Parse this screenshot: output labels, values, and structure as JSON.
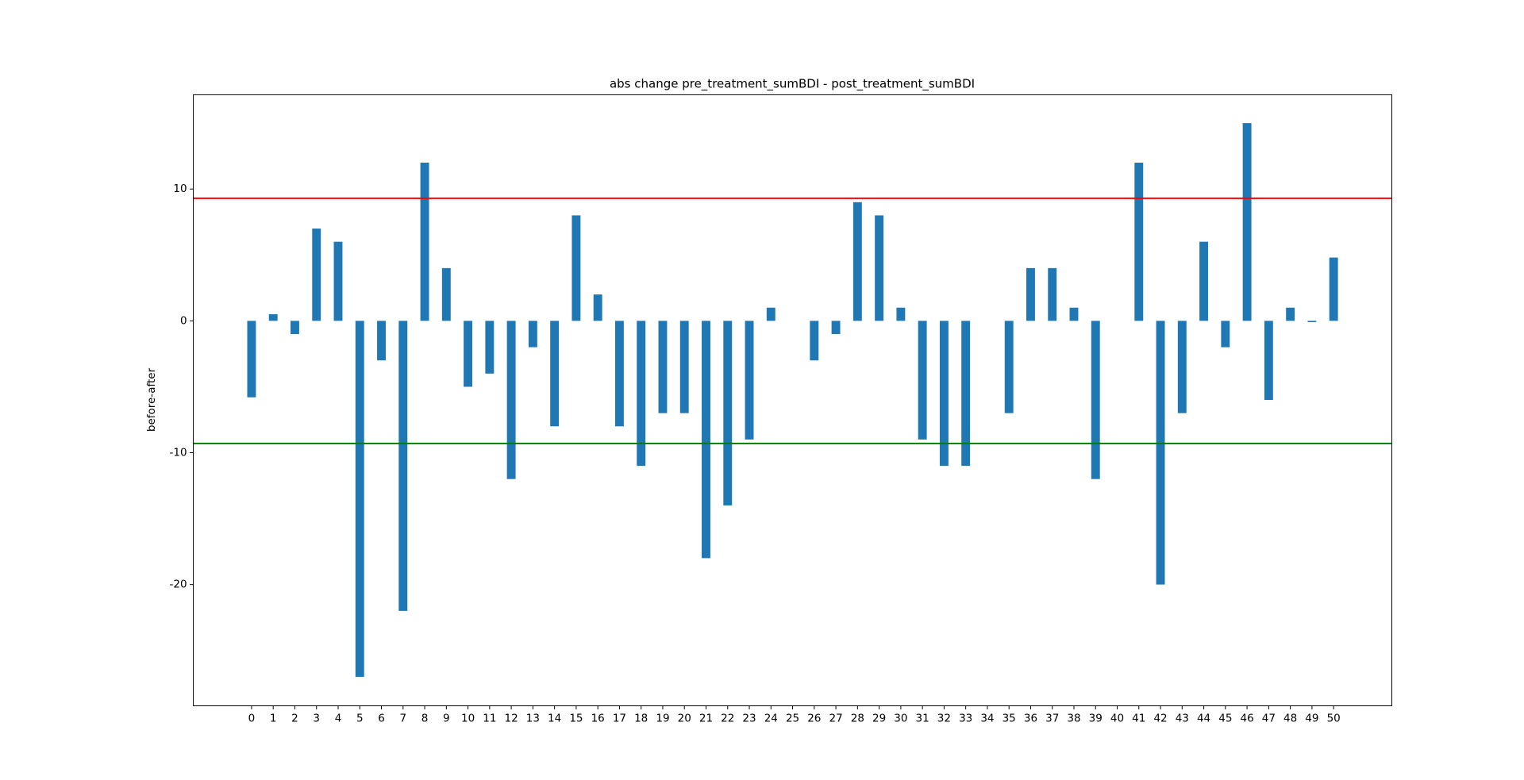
{
  "chart_data": {
    "type": "bar",
    "title": "abs change pre_treatment_sumBDI - post_treatment_sumBDI",
    "y_label": "before-after",
    "categories": [
      "0",
      "1",
      "2",
      "3",
      "4",
      "5",
      "6",
      "7",
      "8",
      "9",
      "10",
      "11",
      "12",
      "13",
      "14",
      "15",
      "16",
      "17",
      "18",
      "19",
      "20",
      "21",
      "22",
      "23",
      "24",
      "25",
      "26",
      "27",
      "28",
      "29",
      "30",
      "31",
      "32",
      "33",
      "34",
      "35",
      "36",
      "37",
      "38",
      "39",
      "40",
      "41",
      "42",
      "43",
      "44",
      "45",
      "46",
      "47",
      "48",
      "49",
      "50"
    ],
    "values": [
      -5.8,
      0.5,
      -1,
      7,
      6,
      -27,
      -3,
      -22,
      12,
      4,
      -5,
      -4,
      -12,
      -2,
      -8,
      8,
      2,
      -8,
      -11,
      -7,
      -7,
      -18,
      -14,
      -9,
      1,
      0,
      -3,
      -1,
      9,
      8,
      1,
      -9,
      -11,
      -11,
      0,
      -7,
      4,
      4,
      1,
      -12,
      0,
      12,
      -20,
      -7,
      6,
      -2,
      15,
      -6,
      1,
      -0.1,
      4.8
    ],
    "color": "#1f77b4",
    "xlim": [
      -2.69,
      52.69
    ],
    "ylim": [
      -29.2,
      17.15
    ],
    "yticks": [
      -20,
      -10,
      0,
      10
    ],
    "hlines": [
      {
        "value": 9.3,
        "color": "#ff0000"
      },
      {
        "value": -9.3,
        "color": "#008000"
      }
    ],
    "grid": false
  }
}
